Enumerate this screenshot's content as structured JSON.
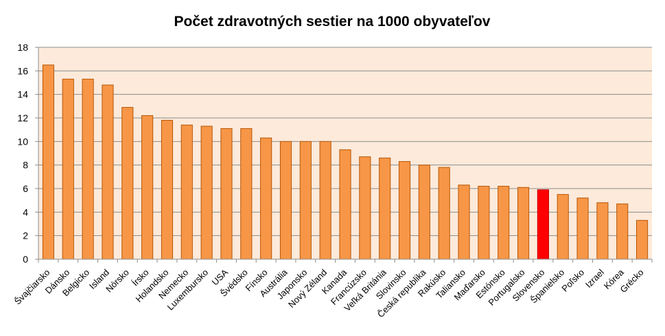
{
  "chart_data": {
    "type": "bar",
    "title": "Počet zdravotných sestier na 1000 obyvateľov",
    "xlabel": "",
    "ylabel": "",
    "ylim": [
      0,
      18
    ],
    "yticks": [
      0,
      2,
      4,
      6,
      8,
      10,
      12,
      14,
      16,
      18
    ],
    "grid": true,
    "legend": "none",
    "categories": [
      "Švajčiarsko",
      "Dánsko",
      "Belgicko",
      "Island",
      "Nórsko",
      "Írsko",
      "Holandsko",
      "Nemecko",
      "Luxembursko",
      "USA",
      "Švédsko",
      "Fínsko",
      "Austrália",
      "Japonsko",
      "Nový Zéland",
      "Kanada",
      "Francúzsko",
      "Veľká Británia",
      "Slovinsko",
      "Česká republika",
      "Rakúsko",
      "Taliansko",
      "Maďarsko",
      "Estónsko",
      "Portugalsko",
      "Slovensko",
      "Španielsko",
      "Poľsko",
      "Izrael",
      "Kórea",
      "Grécko"
    ],
    "series": [
      {
        "values": [
          16.5,
          15.3,
          15.3,
          14.8,
          12.9,
          12.2,
          11.8,
          11.4,
          11.3,
          11.1,
          11.1,
          10.3,
          10.0,
          10.0,
          10.0,
          9.3,
          8.7,
          8.6,
          8.3,
          8.0,
          7.8,
          6.3,
          6.2,
          6.2,
          6.1,
          5.9,
          5.5,
          5.2,
          4.8,
          4.7,
          3.3
        ]
      }
    ],
    "highlight": "Slovensko",
    "colors": {
      "bar": "#F79646",
      "bar_edge": "#B65708",
      "highlight": "#FF0000",
      "highlight_edge": "#C00000",
      "plot_background": "#FDEADA",
      "gridline": "#8C8C8C"
    }
  }
}
